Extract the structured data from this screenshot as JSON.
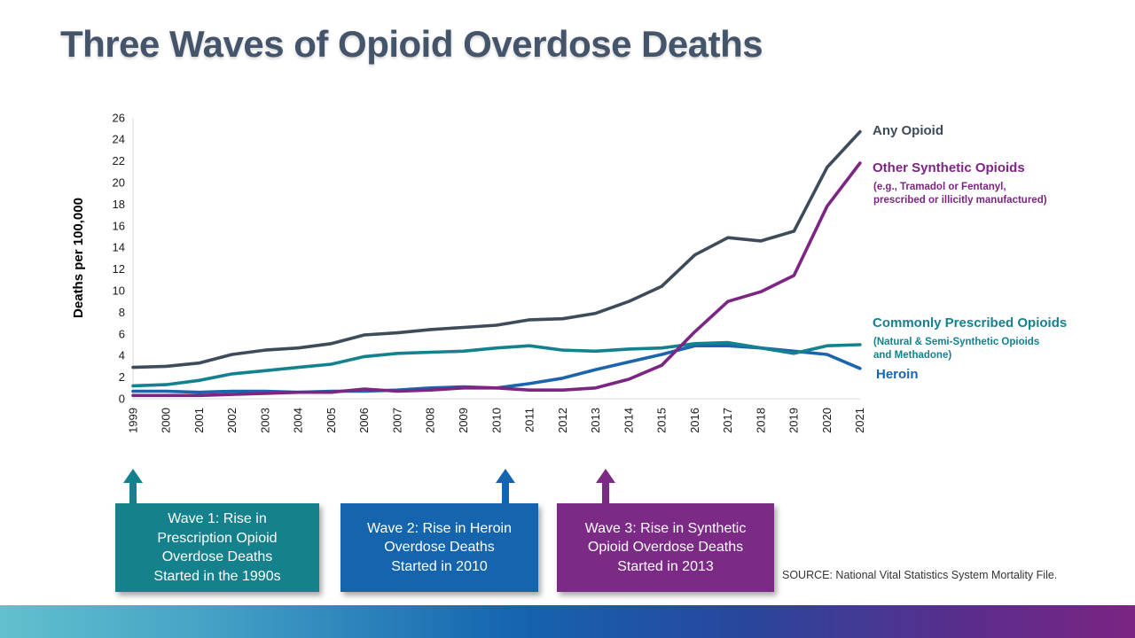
{
  "page": {
    "title": "Three Waves of Opioid Overdose Deaths",
    "source": "SOURCE: National Vital Statistics System Mortality File."
  },
  "chart_data": {
    "type": "line",
    "title": "Three Waves of Opioid Overdose Deaths",
    "xlabel": "",
    "ylabel": "Deaths per 100,000",
    "ylim": [
      0,
      26
    ],
    "ytick_step": 2,
    "grid": false,
    "legend_position": "labels-at-line-ends-right",
    "x": [
      1999,
      2000,
      2001,
      2002,
      2003,
      2004,
      2005,
      2006,
      2007,
      2008,
      2009,
      2010,
      2011,
      2012,
      2013,
      2014,
      2015,
      2016,
      2017,
      2018,
      2019,
      2020,
      2021
    ],
    "series": [
      {
        "name": "Any Opioid",
        "color": "#3E4B5B",
        "values": [
          2.9,
          3.0,
          3.3,
          4.1,
          4.5,
          4.7,
          5.1,
          5.9,
          6.1,
          6.4,
          6.6,
          6.8,
          7.3,
          7.4,
          7.9,
          9.0,
          10.4,
          13.3,
          14.9,
          14.6,
          15.5,
          21.4,
          24.7
        ]
      },
      {
        "name": "Other Synthetic Opioids",
        "subtitle": [
          "(e.g., Tramadol or Fentanyl,",
          "prescribed or illicitly manufactured)"
        ],
        "color": "#7C2583",
        "values": [
          0.3,
          0.3,
          0.3,
          0.4,
          0.5,
          0.6,
          0.6,
          0.9,
          0.7,
          0.8,
          1.0,
          1.0,
          0.8,
          0.8,
          1.0,
          1.8,
          3.1,
          6.2,
          9.0,
          9.9,
          11.4,
          17.8,
          21.8
        ]
      },
      {
        "name": "Commonly Prescribed Opioids",
        "subtitle": [
          "(Natural & Semi-Synthetic Opioids",
          "and Methadone)"
        ],
        "color": "#14818F",
        "values": [
          1.2,
          1.3,
          1.7,
          2.3,
          2.6,
          2.9,
          3.2,
          3.9,
          4.2,
          4.3,
          4.4,
          4.7,
          4.9,
          4.5,
          4.4,
          4.6,
          4.7,
          5.1,
          5.2,
          4.7,
          4.2,
          4.9,
          5.0
        ]
      },
      {
        "name": "Heroin",
        "color": "#1B64AE",
        "values": [
          0.7,
          0.7,
          0.6,
          0.7,
          0.7,
          0.6,
          0.7,
          0.7,
          0.8,
          1.0,
          1.1,
          1.0,
          1.4,
          1.9,
          2.7,
          3.4,
          4.1,
          4.9,
          4.9,
          4.7,
          4.4,
          4.1,
          2.8
        ]
      }
    ]
  },
  "waves": [
    {
      "color": "#15818D",
      "arrow_year": 1999,
      "lines": [
        "Wave 1: Rise in",
        "Prescription Opioid",
        "Overdose Deaths",
        "Started in the 1990s"
      ]
    },
    {
      "color": "#1565AE",
      "arrow_year": 2010,
      "lines": [
        "Wave 2: Rise in Heroin",
        "Overdose Deaths",
        "Started in 2010"
      ]
    },
    {
      "color": "#7B2A86",
      "arrow_year": 2013,
      "lines": [
        "Wave 3: Rise in Synthetic",
        "Opioid Overdose Deaths",
        "Started in 2013"
      ]
    }
  ]
}
